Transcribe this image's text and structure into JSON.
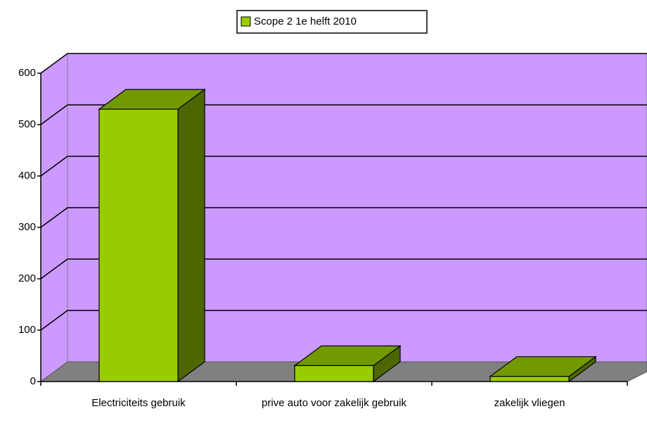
{
  "chart_data": {
    "type": "bar3d",
    "categories": [
      "Electriciteits gebruik",
      "prive auto voor zakelijk gebruik",
      "zakelijk vliegen"
    ],
    "series": [
      {
        "name": "Scope 2 1e helft 2010",
        "color": "#99cc00",
        "values": [
          530,
          31,
          10
        ]
      }
    ],
    "ylim": [
      0,
      600
    ],
    "yticks": [
      0,
      100,
      200,
      300,
      400,
      500,
      600
    ],
    "grid": true,
    "legend": "top"
  }
}
